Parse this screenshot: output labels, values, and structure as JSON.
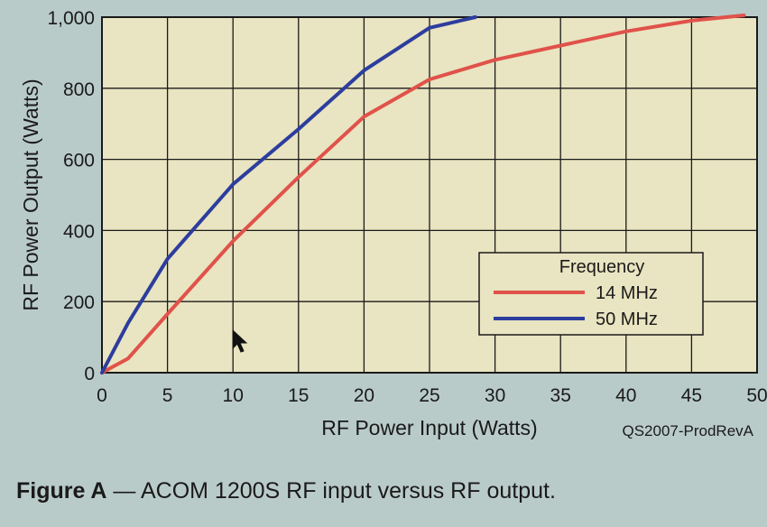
{
  "chart_data": {
    "type": "line",
    "xlabel": "RF Power Input (Watts)",
    "ylabel": "RF Power Output (Watts)",
    "xlim": [
      0,
      50
    ],
    "ylim": [
      0,
      1000
    ],
    "x_ticks": [
      "0",
      "5",
      "10",
      "15",
      "20",
      "25",
      "30",
      "35",
      "40",
      "45",
      "50"
    ],
    "y_ticks": [
      "0",
      "200",
      "400",
      "600",
      "800",
      "1,000"
    ],
    "grid": true,
    "legend": {
      "title": "Frequency",
      "position": "lower-right"
    },
    "series": [
      {
        "name": "14 MHz",
        "color": "#e0524a",
        "x": [
          0,
          2,
          5,
          10,
          15,
          20,
          25,
          30,
          35,
          40,
          45,
          49
        ],
        "y": [
          0,
          40,
          165,
          370,
          550,
          720,
          825,
          880,
          920,
          960,
          990,
          1005
        ]
      },
      {
        "name": "50 MHz",
        "color": "#2c3d9e",
        "x": [
          0,
          2,
          5,
          10,
          15,
          20,
          25,
          28.5
        ],
        "y": [
          0,
          140,
          320,
          530,
          685,
          850,
          970,
          1000
        ]
      }
    ],
    "figure_id": "QS2007-ProdRevA"
  },
  "caption": {
    "label": "Figure A",
    "text": " — ACOM 1200S RF input versus RF output."
  },
  "colors": {
    "plot_background": "#e9e4c1",
    "page_background": "#b9cbc9",
    "grid": "#1a1a1a"
  }
}
